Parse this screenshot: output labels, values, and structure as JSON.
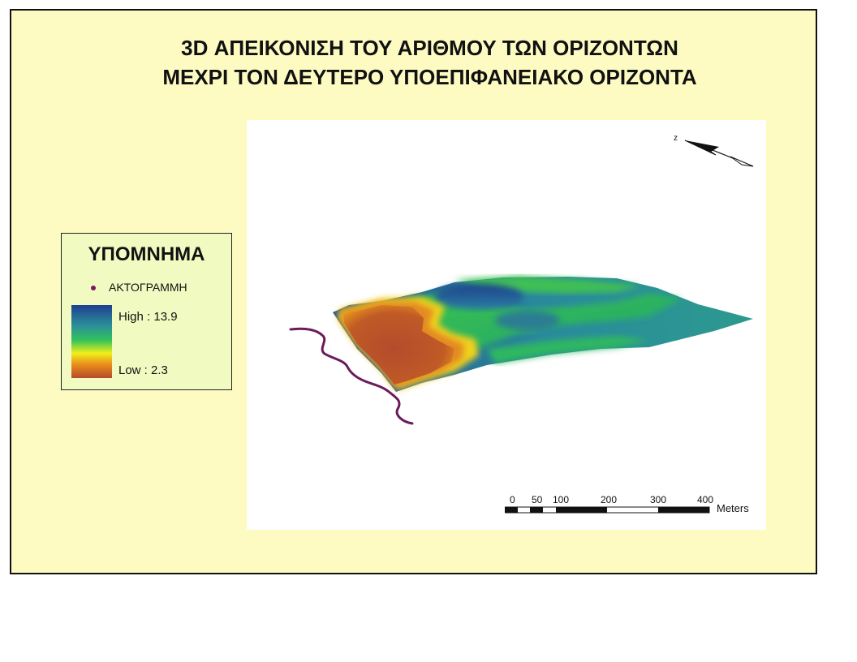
{
  "map": {
    "title_line1": "3D ΑΠΕΙΚΟΝΙΣΗ ΤΟΥ ΑΡΙΘΜΟΥ ΤΩΝ ΟΡΙΖΟΝΤΩΝ",
    "title_line2": "ΜΕΧΡΙ ΤΟΝ ΔΕΥΤΕΡΟ ΥΠΟΕΠΙΦΑΝΕΙΑΚΟ ΟΡΙΖΟΝΤΑ",
    "colors": {
      "frame_background": "#fdfbc2",
      "legend_background": "#f1fbc1",
      "coastline": "#6b1a5a",
      "ramp_high": "#1f3f8f",
      "ramp_mid": "#32c25a",
      "ramp_yellow": "#f1ef1a",
      "ramp_low": "#b54a2a"
    }
  },
  "legend": {
    "title": "ΥΠΟΜΝΗΜΑ",
    "coastline_label": "ΑΚΤΟΓΡΑΜΜΗ",
    "high_label": "High : 13.9",
    "low_label": "Low : 2.3",
    "high_value": 13.9,
    "low_value": 2.3
  },
  "north_arrow": {
    "label": "z",
    "icon": "north-arrow-icon"
  },
  "scale_bar": {
    "ticks": [
      "0",
      "50",
      "100",
      "200",
      "300",
      "400"
    ],
    "unit": "Meters"
  }
}
